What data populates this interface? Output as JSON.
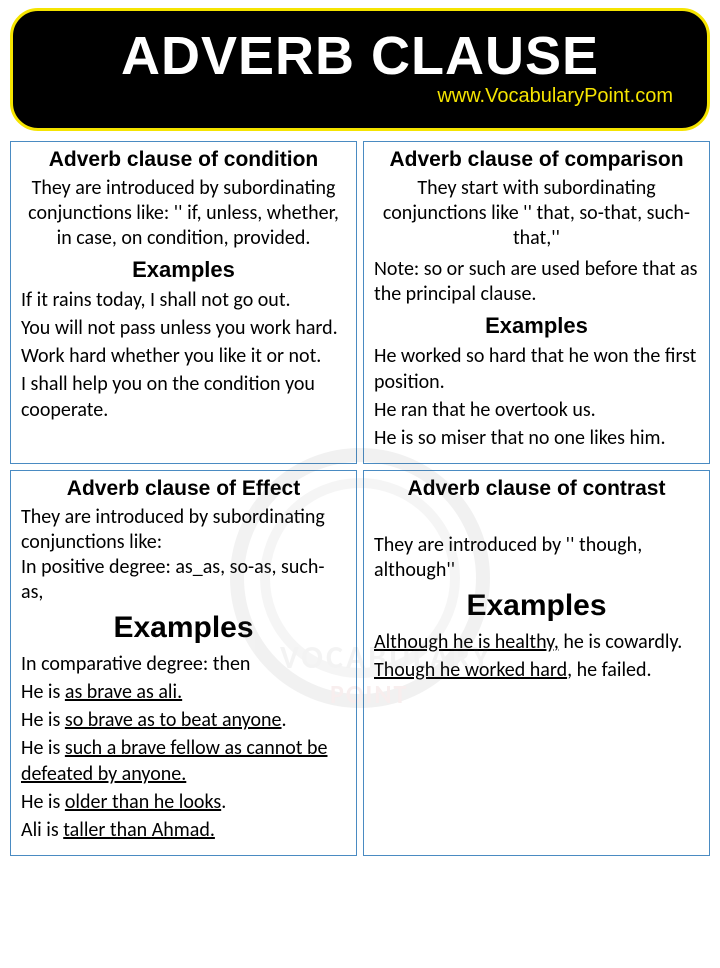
{
  "header": {
    "title": "ADVERB CLAUSE",
    "url": "www.VocabularyPoint.com"
  },
  "colors": {
    "banner_bg": "#000000",
    "banner_border": "#f5e400",
    "banner_title": "#ffffff",
    "banner_url": "#f5e400",
    "card_border": "#4a8bc2",
    "text": "#000000"
  },
  "cards": [
    {
      "title": "Adverb clause of condition",
      "intro_align": "center",
      "intro": "They are introduced by subordinating conjunctions like: '' if, unless, whether, in case, on condition, provided.",
      "examples_heading": "Examples",
      "examples_size": "normal",
      "examples": [
        [
          {
            "t": "If it rains today, I shall not go out.",
            "u": false
          }
        ],
        [
          {
            "t": "You will not pass unless you work hard.",
            "u": false
          }
        ],
        [
          {
            "t": "Work hard whether you like it or not.",
            "u": false
          }
        ],
        [
          {
            "t": "I shall help you on the condition you cooperate.",
            "u": false
          }
        ]
      ]
    },
    {
      "title": "Adverb clause of comparison",
      "intro_align": "center",
      "intro": "They start with subordinating conjunctions like '' that, so-that, such-that,''",
      "note": "Note: so or such are used before that as the principal clause.",
      "examples_heading": "Examples",
      "examples_size": "normal",
      "examples": [
        [
          {
            "t": "He worked so hard that he won the first position.",
            "u": false
          }
        ],
        [
          {
            "t": "He ran that he overtook us.",
            "u": false
          }
        ],
        [
          {
            "t": "He is so miser that no one likes him.",
            "u": false
          }
        ]
      ]
    },
    {
      "title": "Adverb clause of Effect",
      "intro_align": "left",
      "intro": "They are introduced by subordinating conjunctions like:\nIn positive degree: as_as, so-as, such-as,",
      "examples_heading": "Examples",
      "examples_size": "big",
      "examples": [
        [
          {
            "t": "In comparative degree: then",
            "u": false
          }
        ],
        [
          {
            "t": "He is ",
            "u": false
          },
          {
            "t": "as brave as ali.",
            "u": true
          }
        ],
        [
          {
            "t": "He is ",
            "u": false
          },
          {
            "t": "so brave as to beat anyone",
            "u": true
          },
          {
            "t": ".",
            "u": false
          }
        ],
        [
          {
            "t": "He is ",
            "u": false
          },
          {
            "t": "such a brave fellow as cannot be defeated by anyone.",
            "u": true
          }
        ],
        [
          {
            "t": "He is ",
            "u": false
          },
          {
            "t": "older than he looks",
            "u": true
          },
          {
            "t": ".",
            "u": false
          }
        ],
        [
          {
            "t": "Ali is ",
            "u": false
          },
          {
            "t": "taller than Ahmad.",
            "u": true
          }
        ]
      ]
    },
    {
      "title": "Adverb clause of contrast",
      "intro_align": "left",
      "intro": "They are introduced by '' though, although''",
      "examples_heading": "Examples",
      "examples_size": "big",
      "intro_top_pad": "28px",
      "examples": [
        [
          {
            "t": "Although he is healthy,",
            "u": true
          },
          {
            "t": " he is cowardly.",
            "u": false
          }
        ],
        [
          {
            "t": "Though he worked hard",
            "u": true
          },
          {
            "t": ", he failed.",
            "u": false
          }
        ]
      ]
    }
  ],
  "watermark": {
    "line1": "VOCABULARY",
    "line2": "POINT"
  }
}
